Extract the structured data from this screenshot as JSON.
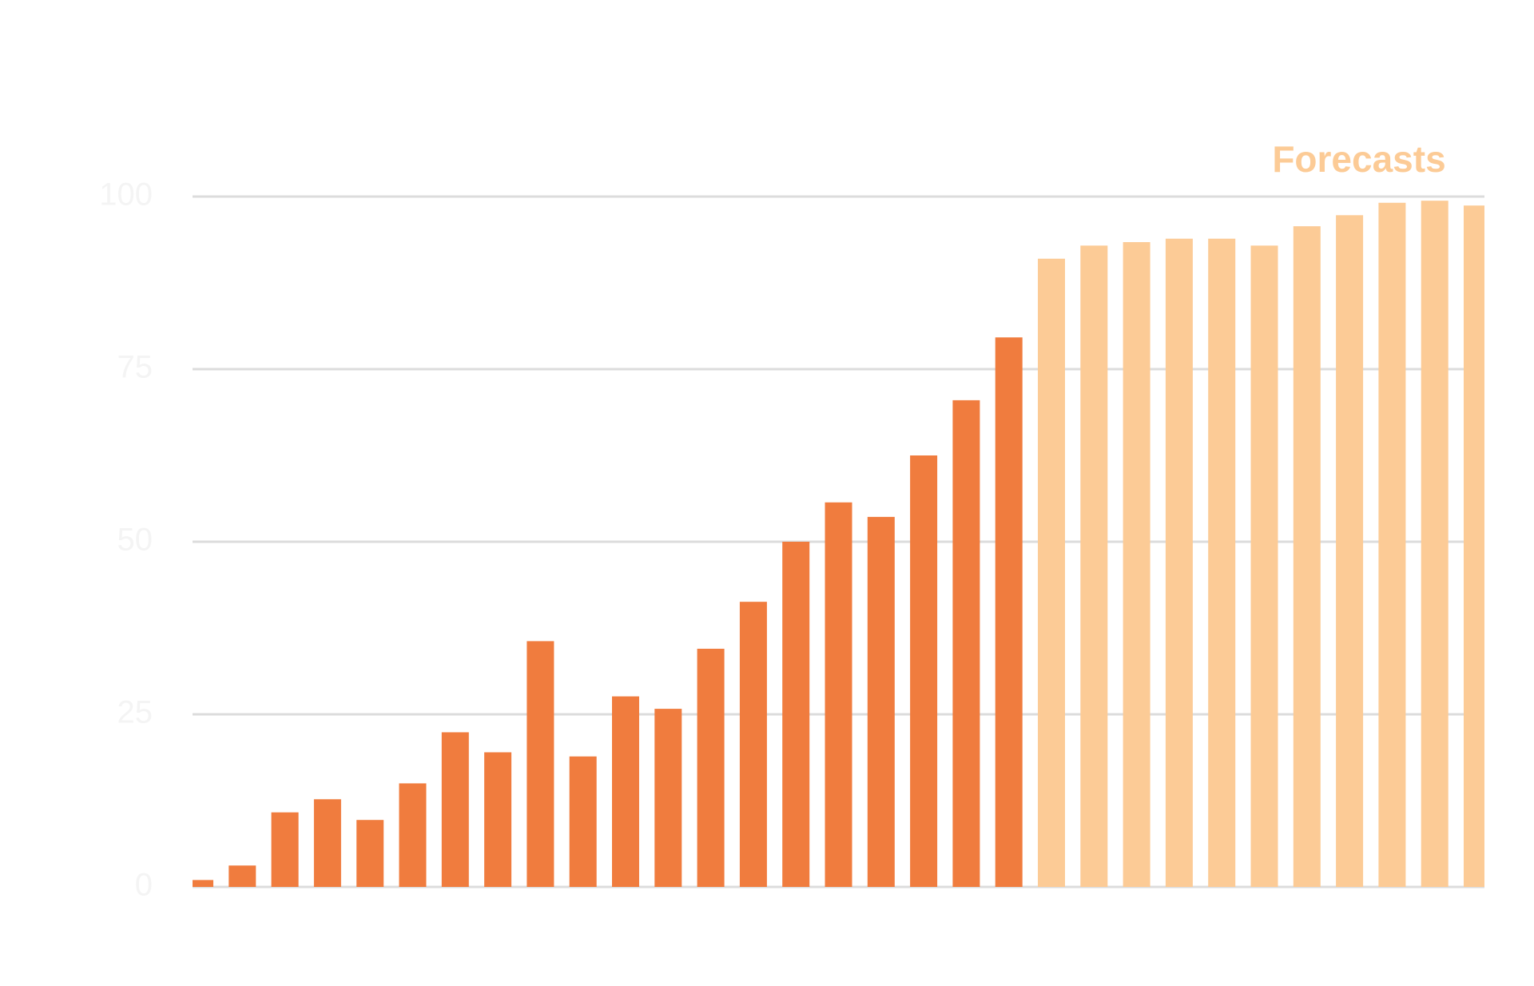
{
  "chart_data": {
    "type": "bar",
    "annotation": "Forecasts",
    "annotation_color": "#fccb96",
    "categories": [
      null,
      null,
      null,
      null,
      null,
      null,
      null,
      null,
      null,
      null,
      null,
      null,
      null,
      null,
      null,
      null,
      null,
      null,
      null,
      null,
      null,
      null,
      null,
      null,
      null,
      null,
      null,
      null,
      null,
      null,
      null
    ],
    "series": [
      {
        "color": "#f07c3e",
        "values": [
          1.0,
          3.1,
          10.8,
          12.7,
          9.7,
          15.0,
          22.4,
          19.5,
          35.6,
          18.9,
          27.6,
          25.8,
          34.5,
          41.3,
          50.0,
          55.7,
          53.6,
          62.5,
          70.5,
          79.6,
          null,
          null,
          null,
          null,
          null,
          null,
          null,
          null,
          null,
          null,
          null
        ]
      },
      {
        "color": "#fccb96",
        "values": [
          null,
          null,
          null,
          null,
          null,
          null,
          null,
          null,
          null,
          null,
          null,
          null,
          null,
          null,
          null,
          null,
          null,
          null,
          null,
          null,
          91.0,
          92.9,
          93.4,
          93.9,
          93.9,
          92.9,
          95.7,
          97.3,
          99.1,
          99.4,
          98.7
        ]
      }
    ],
    "ylim": [
      0,
      100
    ],
    "yticks": [
      0,
      25,
      50,
      75,
      100
    ],
    "grid": true
  }
}
